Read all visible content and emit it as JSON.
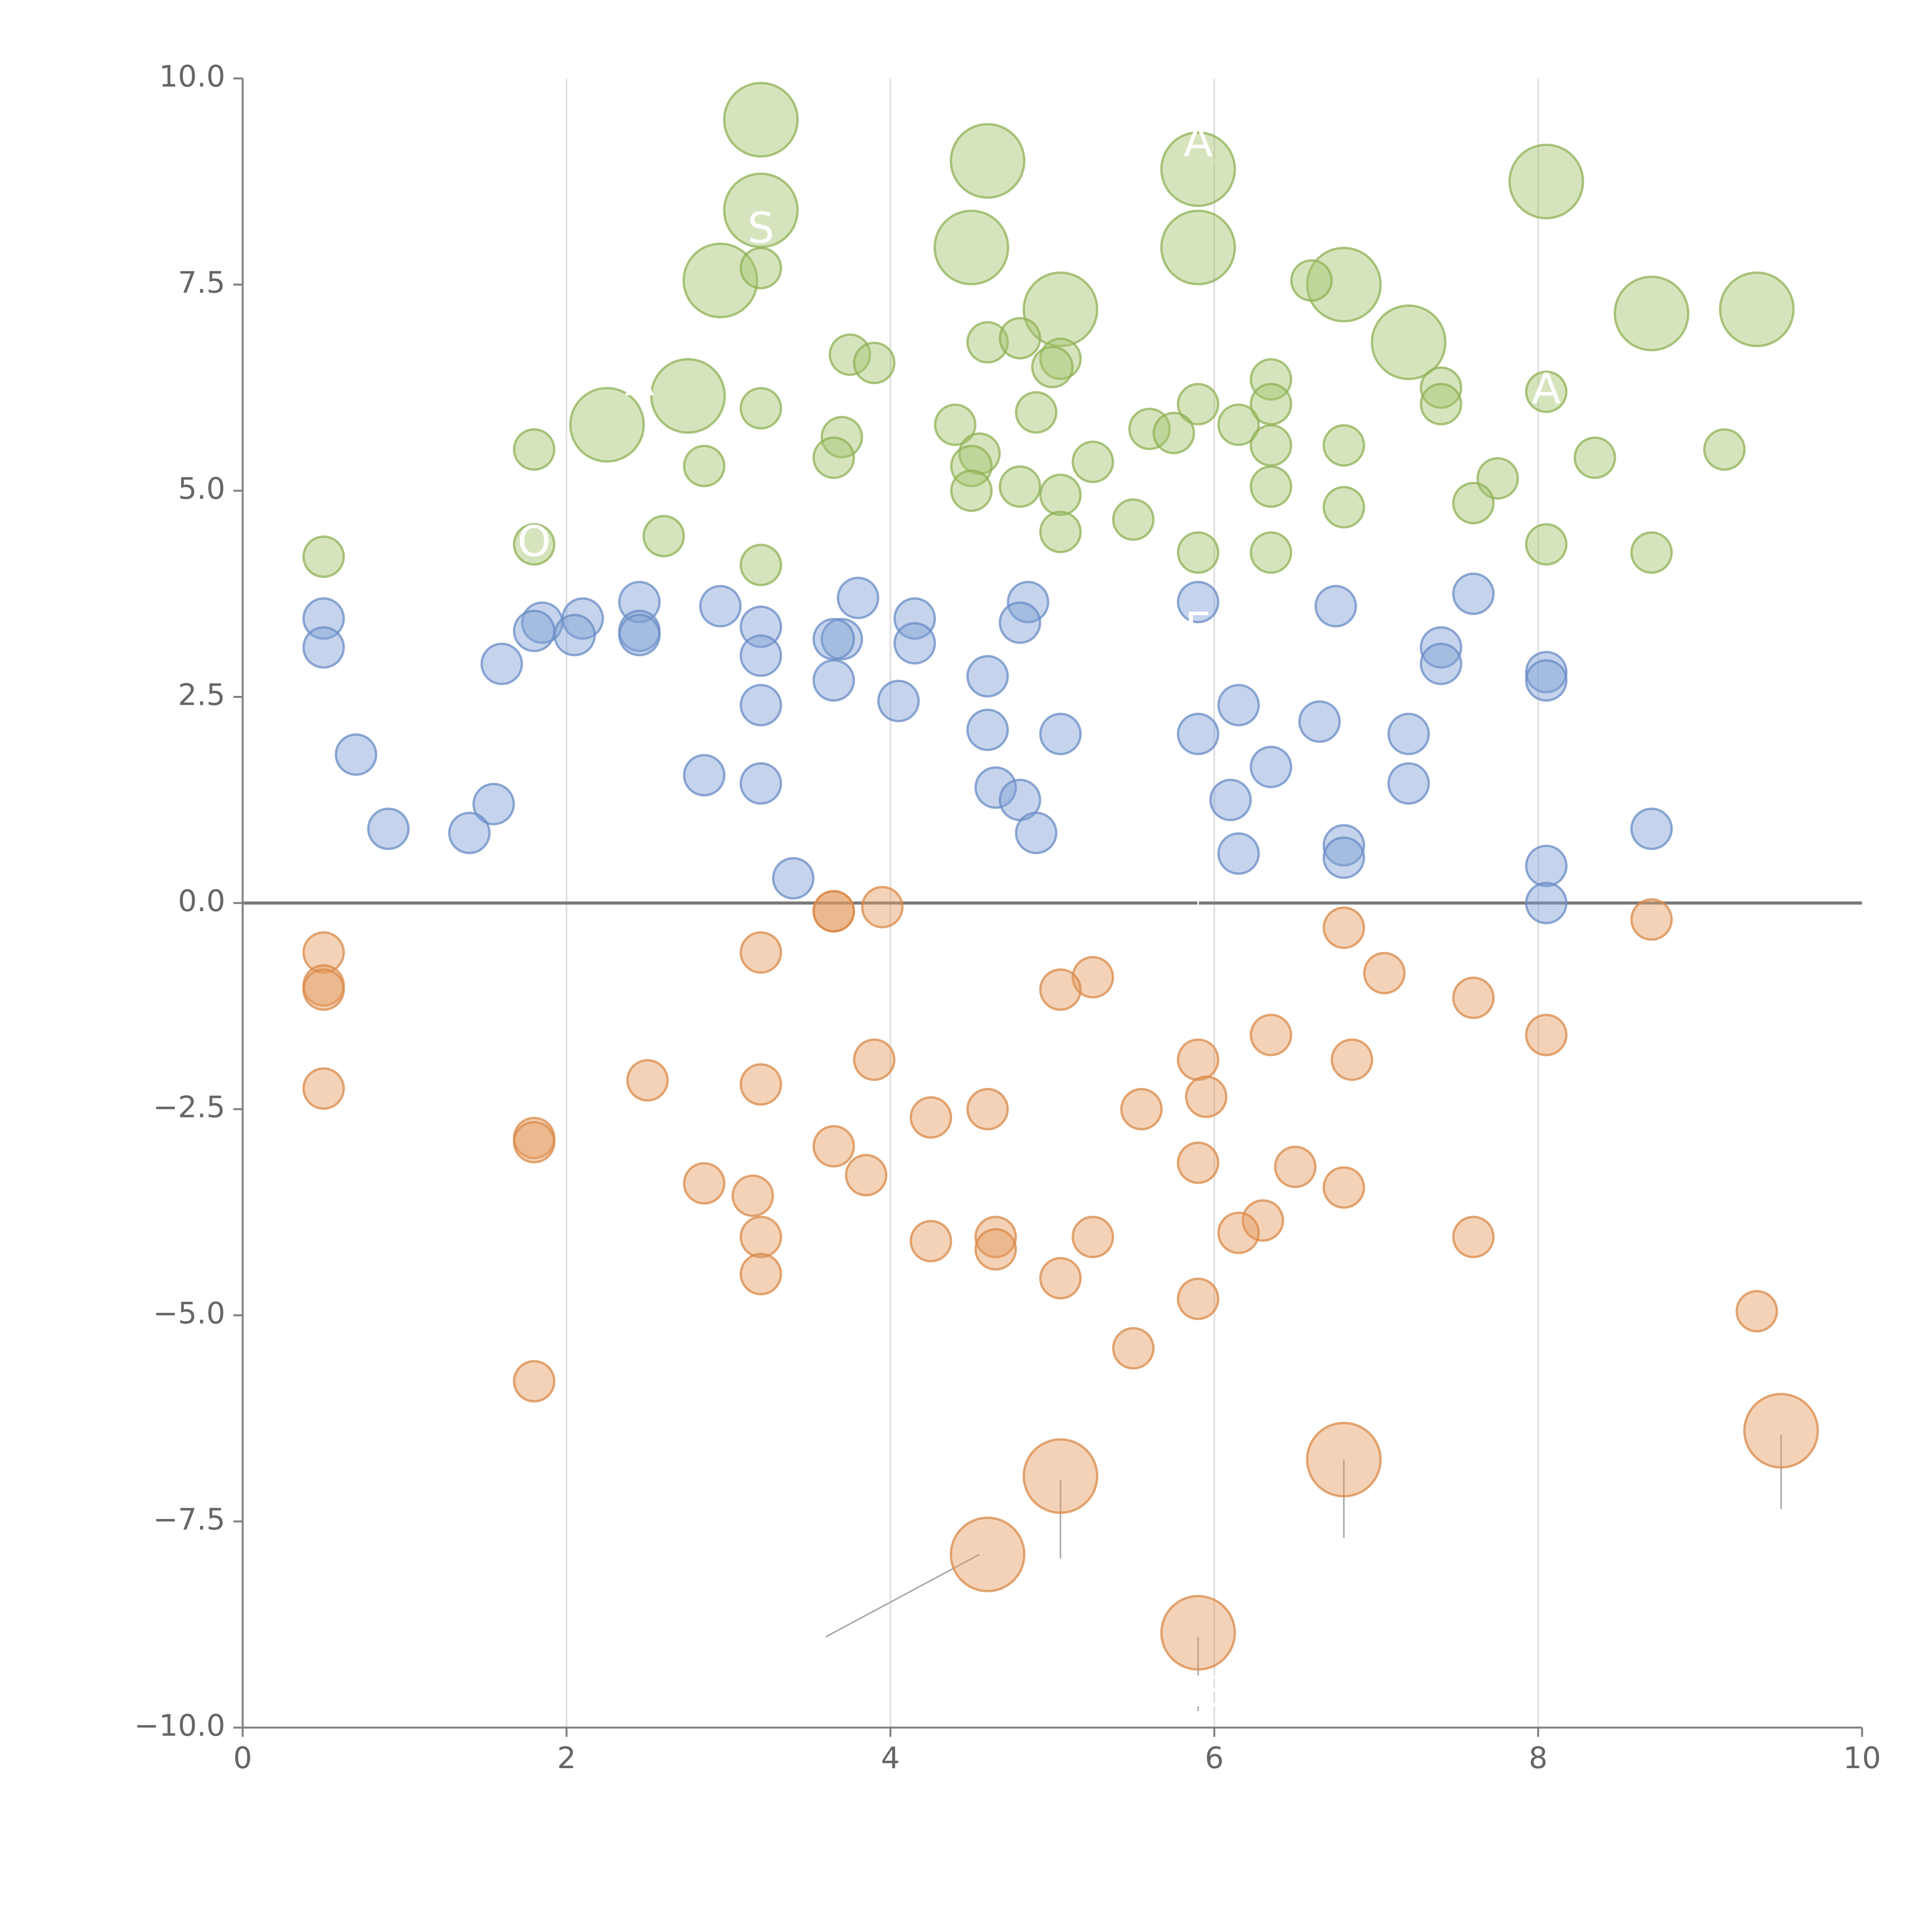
{
  "chart_data": {
    "type": "scatter",
    "title": "",
    "xlabel": "",
    "ylabel": "",
    "xlim": [
      0,
      10
    ],
    "ylim": [
      -10,
      10
    ],
    "x_ticks": [
      0,
      2,
      4,
      6,
      8,
      10
    ],
    "x_tick_labels": [
      "0",
      "2",
      "4",
      "6",
      "8",
      "10"
    ],
    "y_ticks": [
      10,
      7.5,
      5,
      2.5,
      0,
      -2.5,
      -5,
      -7.5,
      -10
    ],
    "y_tick_labels": [
      "10.0",
      "7.5",
      "5.0",
      "2.5",
      "0.0",
      "−2.5",
      "−5.0",
      "−7.5",
      "−10.0"
    ],
    "vertical_grid_x": [
      2,
      4,
      6,
      8
    ],
    "reference_line_y": 0,
    "grid": "vertical",
    "marker_alpha": 0.45,
    "series": [
      {
        "name": "green",
        "color": "#a5c46d",
        "edge": "#8fb256",
        "points": [
          [
            3.2,
            9.5,
            "L"
          ],
          [
            4.6,
            9.0,
            "L"
          ],
          [
            5.9,
            8.9,
            "L"
          ],
          [
            8.05,
            8.75,
            "L"
          ],
          [
            3.2,
            8.4,
            "L"
          ],
          [
            4.5,
            7.95,
            "L"
          ],
          [
            5.9,
            7.95,
            "L"
          ],
          [
            2.95,
            7.55,
            "L"
          ],
          [
            6.8,
            7.5,
            "L"
          ],
          [
            5.05,
            7.2,
            "L"
          ],
          [
            8.7,
            7.15,
            "L"
          ],
          [
            9.35,
            7.2,
            "L"
          ],
          [
            7.2,
            6.8,
            "L"
          ],
          [
            2.75,
            6.15,
            "L"
          ],
          [
            2.25,
            5.8,
            "L"
          ],
          [
            3.2,
            7.7,
            "S"
          ],
          [
            6.6,
            7.55,
            "S"
          ],
          [
            4.6,
            6.8,
            "S"
          ],
          [
            4.8,
            6.85,
            "S"
          ],
          [
            3.75,
            6.65,
            "S"
          ],
          [
            3.9,
            6.55,
            "S"
          ],
          [
            5.05,
            6.6,
            "S"
          ],
          [
            5.0,
            6.5,
            "S"
          ],
          [
            6.35,
            6.35,
            "S"
          ],
          [
            7.4,
            6.25,
            "S"
          ],
          [
            8.05,
            6.2,
            "S"
          ],
          [
            5.9,
            6.05,
            "S"
          ],
          [
            6.35,
            6.05,
            "S"
          ],
          [
            7.4,
            6.05,
            "S"
          ],
          [
            3.2,
            6.0,
            "S"
          ],
          [
            4.9,
            5.95,
            "S"
          ],
          [
            6.15,
            5.8,
            "S"
          ],
          [
            4.4,
            5.8,
            "S"
          ],
          [
            5.6,
            5.75,
            "S"
          ],
          [
            5.75,
            5.7,
            "S"
          ],
          [
            3.7,
            5.65,
            "S"
          ],
          [
            1.8,
            5.5,
            "S"
          ],
          [
            6.35,
            5.55,
            "S"
          ],
          [
            6.8,
            5.55,
            "S"
          ],
          [
            9.15,
            5.5,
            "S"
          ],
          [
            8.35,
            5.4,
            "S"
          ],
          [
            4.55,
            5.45,
            "S"
          ],
          [
            3.65,
            5.4,
            "S"
          ],
          [
            5.25,
            5.35,
            "S"
          ],
          [
            4.5,
            5.3,
            "S"
          ],
          [
            2.85,
            5.3,
            "S"
          ],
          [
            7.75,
            5.15,
            "S"
          ],
          [
            4.5,
            5.0,
            "S"
          ],
          [
            4.8,
            5.05,
            "S"
          ],
          [
            6.35,
            5.05,
            "S"
          ],
          [
            5.05,
            4.95,
            "S"
          ],
          [
            6.8,
            4.8,
            "S"
          ],
          [
            7.6,
            4.85,
            "S"
          ],
          [
            5.5,
            4.65,
            "S"
          ],
          [
            5.05,
            4.5,
            "S"
          ],
          [
            2.6,
            4.45,
            "S"
          ],
          [
            1.8,
            4.35,
            "S"
          ],
          [
            8.05,
            4.35,
            "S"
          ],
          [
            5.9,
            4.25,
            "S"
          ],
          [
            6.35,
            4.25,
            "S"
          ],
          [
            8.7,
            4.25,
            "S"
          ],
          [
            0.5,
            4.2,
            "S"
          ],
          [
            3.2,
            4.1,
            "S"
          ]
        ]
      },
      {
        "name": "blue",
        "color": "#7f9fd4",
        "edge": "#6a8cc6",
        "points": [
          [
            3.8,
            3.7,
            "S"
          ],
          [
            7.6,
            3.75,
            "S"
          ],
          [
            4.85,
            3.65,
            "S"
          ],
          [
            5.9,
            3.65,
            "S"
          ],
          [
            6.75,
            3.6,
            "S"
          ],
          [
            2.45,
            3.65,
            "S"
          ],
          [
            2.95,
            3.6,
            "S"
          ],
          [
            4.15,
            3.45,
            "S"
          ],
          [
            2.1,
            3.45,
            "S"
          ],
          [
            0.5,
            3.45,
            "S"
          ],
          [
            1.85,
            3.4,
            "S"
          ],
          [
            4.8,
            3.4,
            "S"
          ],
          [
            3.2,
            3.35,
            "S"
          ],
          [
            1.8,
            3.3,
            "S"
          ],
          [
            2.45,
            3.3,
            "S"
          ],
          [
            2.45,
            3.25,
            "S"
          ],
          [
            2.05,
            3.25,
            "S"
          ],
          [
            3.7,
            3.2,
            "S"
          ],
          [
            3.65,
            3.2,
            "S"
          ],
          [
            4.15,
            3.15,
            "S"
          ],
          [
            7.4,
            3.1,
            "S"
          ],
          [
            0.5,
            3.1,
            "S"
          ],
          [
            3.2,
            3.0,
            "S"
          ],
          [
            7.4,
            2.9,
            "S"
          ],
          [
            1.6,
            2.9,
            "S"
          ],
          [
            8.05,
            2.8,
            "S"
          ],
          [
            8.05,
            2.7,
            "S"
          ],
          [
            4.6,
            2.75,
            "S"
          ],
          [
            3.65,
            2.7,
            "S"
          ],
          [
            4.05,
            2.45,
            "S"
          ],
          [
            3.2,
            2.4,
            "S"
          ],
          [
            6.15,
            2.4,
            "S"
          ],
          [
            6.65,
            2.2,
            "S"
          ],
          [
            4.6,
            2.1,
            "S"
          ],
          [
            5.9,
            2.05,
            "S"
          ],
          [
            5.05,
            2.05,
            "S"
          ],
          [
            7.2,
            2.05,
            "S"
          ],
          [
            0.7,
            1.8,
            "S"
          ],
          [
            6.35,
            1.65,
            "S"
          ],
          [
            2.85,
            1.55,
            "S"
          ],
          [
            1.55,
            1.2,
            "S"
          ],
          [
            7.2,
            1.45,
            "S"
          ],
          [
            4.65,
            1.4,
            "S"
          ],
          [
            3.2,
            1.45,
            "S"
          ],
          [
            6.1,
            1.25,
            "S"
          ],
          [
            4.8,
            1.25,
            "S"
          ],
          [
            0.9,
            0.9,
            "S"
          ],
          [
            8.7,
            0.9,
            "S"
          ],
          [
            1.4,
            0.85,
            "S"
          ],
          [
            4.9,
            0.85,
            "S"
          ],
          [
            6.8,
            0.7,
            "S"
          ],
          [
            6.8,
            0.55,
            "S"
          ],
          [
            6.15,
            0.6,
            "S"
          ],
          [
            8.05,
            0.45,
            "S"
          ],
          [
            3.4,
            0.3,
            "S"
          ],
          [
            8.05,
            0.0,
            "S"
          ]
        ]
      },
      {
        "name": "orange",
        "color": "#e59c60",
        "edge": "#d98a48",
        "points": [
          [
            3.65,
            -0.1,
            "S"
          ],
          [
            3.65,
            -0.1,
            "S"
          ],
          [
            3.95,
            -0.05,
            "S"
          ],
          [
            8.7,
            -0.2,
            "S"
          ],
          [
            6.8,
            -0.3,
            "S"
          ],
          [
            0.5,
            -0.6,
            "S"
          ],
          [
            3.2,
            -0.6,
            "S"
          ],
          [
            7.05,
            -0.85,
            "S"
          ],
          [
            5.25,
            -0.9,
            "S"
          ],
          [
            0.5,
            -1.0,
            "S"
          ],
          [
            0.5,
            -1.05,
            "S"
          ],
          [
            5.05,
            -1.05,
            "S"
          ],
          [
            7.6,
            -1.15,
            "S"
          ],
          [
            6.35,
            -1.6,
            "S"
          ],
          [
            8.05,
            -1.6,
            "S"
          ],
          [
            3.9,
            -1.9,
            "S"
          ],
          [
            6.85,
            -1.9,
            "S"
          ],
          [
            5.9,
            -1.9,
            "S"
          ],
          [
            2.5,
            -2.15,
            "S"
          ],
          [
            3.2,
            -2.2,
            "S"
          ],
          [
            0.5,
            -2.25,
            "S"
          ],
          [
            5.95,
            -2.35,
            "S"
          ],
          [
            5.55,
            -2.5,
            "S"
          ],
          [
            4.6,
            -2.5,
            "S"
          ],
          [
            4.25,
            -2.6,
            "S"
          ],
          [
            1.8,
            -2.85,
            "S"
          ],
          [
            1.8,
            -2.9,
            "S"
          ],
          [
            3.65,
            -2.95,
            "S"
          ],
          [
            5.9,
            -3.15,
            "S"
          ],
          [
            6.5,
            -3.2,
            "S"
          ],
          [
            3.85,
            -3.3,
            "S"
          ],
          [
            2.85,
            -3.4,
            "S"
          ],
          [
            6.8,
            -3.45,
            "S"
          ],
          [
            3.15,
            -3.55,
            "S"
          ],
          [
            6.3,
            -3.85,
            "S"
          ],
          [
            6.15,
            -4.0,
            "S"
          ],
          [
            7.6,
            -4.05,
            "S"
          ],
          [
            4.65,
            -4.05,
            "S"
          ],
          [
            3.2,
            -4.05,
            "S"
          ],
          [
            5.25,
            -4.05,
            "S"
          ],
          [
            4.25,
            -4.1,
            "S"
          ],
          [
            4.65,
            -4.2,
            "S"
          ],
          [
            3.2,
            -4.5,
            "S"
          ],
          [
            5.05,
            -4.55,
            "S"
          ],
          [
            5.9,
            -4.8,
            "S"
          ],
          [
            9.35,
            -4.95,
            "S"
          ],
          [
            5.5,
            -5.4,
            "S"
          ],
          [
            1.8,
            -5.8,
            "S"
          ],
          [
            9.5,
            -6.4,
            "L"
          ],
          [
            6.8,
            -6.75,
            "L"
          ],
          [
            5.05,
            -6.95,
            "L"
          ],
          [
            4.6,
            -7.9,
            "L"
          ],
          [
            5.9,
            -8.85,
            "L"
          ]
        ]
      }
    ],
    "leader_lines": [
      {
        "series": "orange",
        "from": [
          4.55,
          -7.9
        ],
        "to": [
          3.6,
          -8.9
        ]
      },
      {
        "series": "orange",
        "from": [
          5.05,
          -7.0
        ],
        "to": [
          5.05,
          -7.95
        ]
      },
      {
        "series": "orange",
        "from": [
          6.8,
          -6.75
        ],
        "to": [
          6.8,
          -7.7
        ]
      },
      {
        "series": "orange",
        "from": [
          9.5,
          -6.45
        ],
        "to": [
          9.5,
          -7.35
        ]
      },
      {
        "series": "orange",
        "from": [
          5.9,
          -8.9
        ],
        "to": [
          5.9,
          -9.8
        ]
      },
      {
        "series": "white",
        "from": [
          3.3,
          9.5
        ],
        "to": [
          3.05,
          9.5
        ]
      },
      {
        "series": "white",
        "from": [
          4.65,
          8.95
        ],
        "to": [
          4.8,
          8.75
        ]
      },
      {
        "series": "white",
        "from": [
          5.95,
          8.85
        ],
        "to": [
          6.05,
          9.15
        ]
      },
      {
        "series": "white",
        "from": [
          8.1,
          8.7
        ],
        "to": [
          8.2,
          9.0
        ]
      },
      {
        "series": "white",
        "from": [
          3.1,
          8.35
        ],
        "to": [
          2.9,
          8.15
        ]
      },
      {
        "series": "white",
        "from": [
          4.55,
          7.9
        ],
        "to": [
          4.45,
          7.95
        ]
      },
      {
        "series": "white",
        "from": [
          5.9,
          7.95
        ],
        "to": [
          5.95,
          8.2
        ]
      },
      {
        "series": "white",
        "from": [
          6.85,
          7.5
        ],
        "to": [
          7.0,
          7.75
        ]
      },
      {
        "series": "white",
        "from": [
          2.95,
          7.55
        ],
        "to": [
          2.75,
          7.75
        ]
      },
      {
        "series": "white",
        "from": [
          5.0,
          7.2
        ],
        "to": [
          4.95,
          6.85
        ]
      },
      {
        "series": "white",
        "from": [
          8.7,
          7.15
        ],
        "to": [
          8.95,
          7.35
        ]
      },
      {
        "series": "white",
        "from": [
          9.35,
          7.2
        ],
        "to": [
          9.4,
          7.5
        ]
      },
      {
        "series": "white",
        "from": [
          7.2,
          6.8
        ],
        "to": [
          7.5,
          6.65
        ]
      },
      {
        "series": "white",
        "from": [
          2.7,
          6.15
        ],
        "to": [
          2.45,
          6.35
        ]
      },
      {
        "series": "white",
        "from": [
          2.25,
          5.8
        ],
        "to": [
          2.0,
          5.65
        ]
      },
      {
        "series": "white",
        "from": [
          1.85,
          5.55
        ],
        "to": [
          1.6,
          5.4
        ]
      },
      {
        "series": "white",
        "from": [
          2.05,
          9.2
        ],
        "to": [
          2.05,
          9.0
        ]
      },
      {
        "series": "white",
        "from": [
          2.05,
          8.1
        ],
        "to": [
          2.05,
          7.9
        ]
      },
      {
        "series": "white",
        "from": [
          2.05,
          7.1
        ],
        "to": [
          2.05,
          6.9
        ]
      },
      {
        "series": "white",
        "from": [
          5.9,
          0.05
        ],
        "to": [
          5.9,
          -0.05
        ]
      }
    ],
    "annotations": [
      {
        "text": "S",
        "x": 3.2,
        "y": 8.15
      },
      {
        "text": "A",
        "x": 5.9,
        "y": 9.2
      },
      {
        "text": "A",
        "x": 8.05,
        "y": 6.2
      },
      {
        "text": "Λ",
        "x": 2.45,
        "y": 6.3
      },
      {
        "text": "O",
        "x": 1.8,
        "y": 4.35
      },
      {
        "text": "E",
        "x": 5.9,
        "y": 3.3
      },
      {
        "text": "E",
        "x": 5.95,
        "y": -9.6
      }
    ]
  }
}
